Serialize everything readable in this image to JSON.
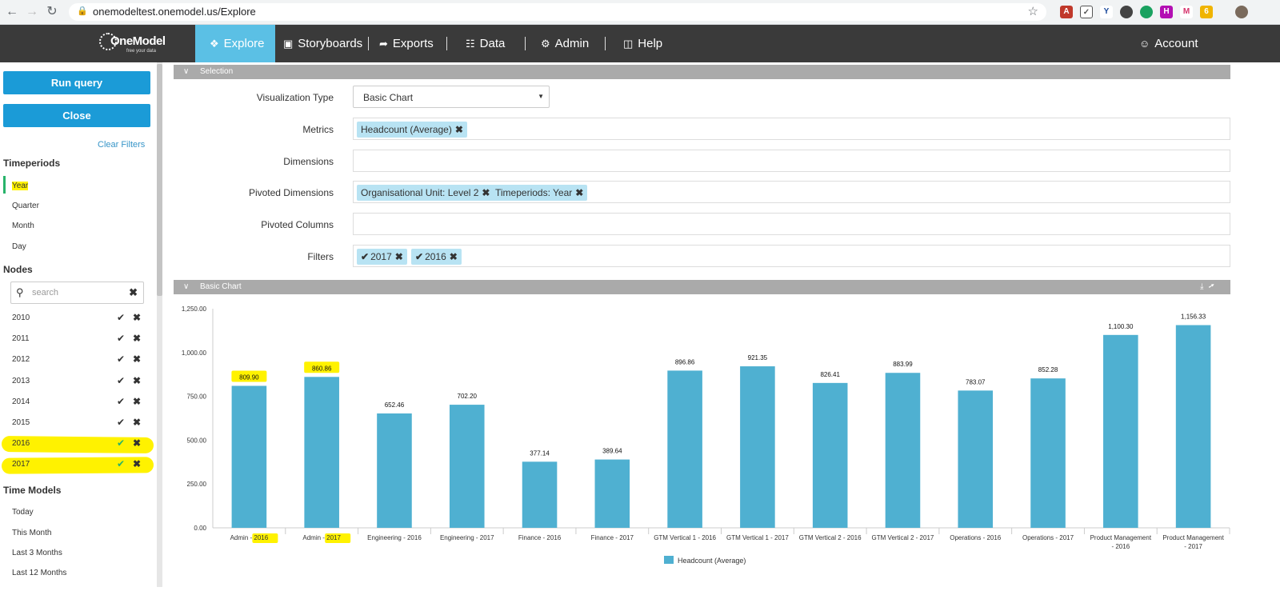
{
  "browser": {
    "url": "onemodeltest.onemodel.us/Explore"
  },
  "app": {
    "logo_text": "OneModel",
    "logo_tagline": "free your data",
    "nav": [
      {
        "label": "Explore",
        "icon": "compass-icon",
        "active": true
      },
      {
        "label": "Storyboards",
        "icon": "storyboard-icon"
      },
      {
        "label": "Exports",
        "icon": "export-icon"
      },
      {
        "label": "Data",
        "icon": "data-icon"
      },
      {
        "label": "Admin",
        "icon": "gear-icon"
      },
      {
        "label": "Help",
        "icon": "help-icon"
      }
    ],
    "account_label": "Account"
  },
  "sidebar": {
    "run_query": "Run query",
    "close": "Close",
    "clear_filters": "Clear Filters",
    "timeperiods_title": "Timeperiods",
    "timeperiods": [
      "Year",
      "Quarter",
      "Month",
      "Day"
    ],
    "nodes_title": "Nodes",
    "search_placeholder": "search",
    "years": [
      "2010",
      "2011",
      "2012",
      "2013",
      "2014",
      "2015",
      "2016",
      "2017"
    ],
    "time_models_title": "Time Models",
    "time_models": [
      "Today",
      "This Month",
      "Last 3 Months",
      "Last 12 Months"
    ]
  },
  "selection": {
    "section_title": "Selection",
    "labels": {
      "viz_type": "Visualization Type",
      "metrics": "Metrics",
      "dimensions": "Dimensions",
      "pivoted_dimensions": "Pivoted Dimensions",
      "pivoted_columns": "Pivoted Columns",
      "filters": "Filters"
    },
    "viz_type_value": "Basic Chart",
    "metrics": [
      "Headcount (Average)"
    ],
    "pivoted_dimensions": [
      "Organisational Unit: Level 2",
      "Timeperiods: Year"
    ],
    "filters": [
      "2017",
      "2016"
    ]
  },
  "chart_section": {
    "title": "Basic Chart"
  },
  "chart_data": {
    "type": "bar",
    "categories": [
      "Admin - 2016",
      "Admin - 2017",
      "Engineering - 2016",
      "Engineering - 2017",
      "Finance - 2016",
      "Finance - 2017",
      "GTM Vertical 1 - 2016",
      "GTM Vertical 1 - 2017",
      "GTM Vertical 2 - 2016",
      "GTM Vertical 2 - 2017",
      "Operations - 2016",
      "Operations - 2017",
      "Product Management - 2016",
      "Product Management - 2017"
    ],
    "series": [
      {
        "name": "Headcount (Average)",
        "values": [
          809.9,
          860.86,
          652.46,
          702.2,
          377.14,
          389.64,
          896.86,
          921.35,
          826.41,
          883.99,
          783.07,
          852.28,
          1100.3,
          1156.33
        ]
      }
    ],
    "value_labels": [
      "809.90",
      "860.86",
      "652.46",
      "702.20",
      "377.14",
      "389.64",
      "896.86",
      "921.35",
      "826.41",
      "883.99",
      "783.07",
      "852.28",
      "1,100.30",
      "1,156.33"
    ],
    "yticks": [
      0,
      250,
      500,
      750,
      1000,
      1250
    ],
    "ytick_labels": [
      "0.00",
      "250.00",
      "500.00",
      "750.00",
      "1,000.00",
      "1,250.00"
    ],
    "ylim": [
      0,
      1250
    ],
    "color": "#4fb0d1",
    "legend": "bottom-center",
    "grid": false
  }
}
